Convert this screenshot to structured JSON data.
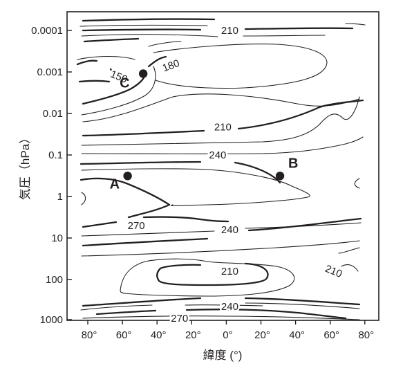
{
  "chart_data": {
    "type": "contour",
    "title": "",
    "xlabel": "緯度 (°)",
    "ylabel": "気圧（hPa）",
    "x_tick_labels": [
      "80°",
      "60°",
      "40°",
      "20°",
      "0°",
      "20°",
      "40°",
      "60°",
      "80°"
    ],
    "x_tick_values": [
      -80,
      -60,
      -40,
      -20,
      0,
      20,
      40,
      60,
      80
    ],
    "xlim": [
      -90,
      90
    ],
    "y_scale": "log",
    "y_reversed": true,
    "y_tick_labels": [
      "0.0001",
      "0.001",
      "0.01",
      "0.1",
      "1",
      "10",
      "100",
      "1000"
    ],
    "y_tick_values": [
      0.0001,
      0.001,
      0.01,
      0.1,
      1,
      10,
      100,
      1000
    ],
    "ylim": [
      1000,
      2e-05
    ],
    "contour_units": "K",
    "contour_labels": [
      {
        "text": "210",
        "lat": 2,
        "pressure": 0.0001
      },
      {
        "text": "180",
        "lat": -32,
        "pressure": 0.0007
      },
      {
        "text": "150",
        "lat": -62,
        "pressure": 0.0013
      },
      {
        "text": "210",
        "lat": -2,
        "pressure": 0.021
      },
      {
        "text": "240",
        "lat": -5,
        "pressure": 0.1
      },
      {
        "text": "270",
        "lat": -52,
        "pressure": 5
      },
      {
        "text": "240",
        "lat": 2,
        "pressure": 6.3
      },
      {
        "text": "210",
        "lat": 2,
        "pressure": 63
      },
      {
        "text": "210",
        "lat": 62,
        "pressure": 63
      },
      {
        "text": "240",
        "lat": 2,
        "pressure": 450
      },
      {
        "text": "270",
        "lat": -27,
        "pressure": 850
      }
    ],
    "points": [
      {
        "label": "A",
        "lat": -57,
        "pressure": 0.32
      },
      {
        "label": "B",
        "lat": 31,
        "pressure": 0.32
      },
      {
        "label": "C",
        "lat": -48,
        "pressure": 0.0011
      }
    ]
  }
}
